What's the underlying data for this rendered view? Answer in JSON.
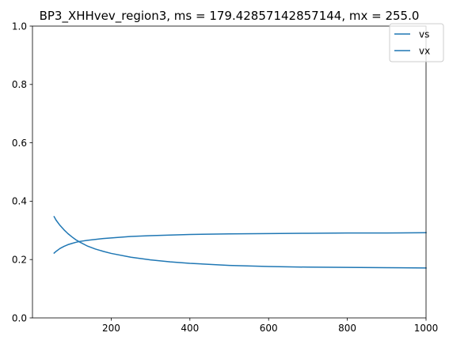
{
  "chart_data": {
    "type": "line",
    "title": "BP3_XHHvev_region3, ms = 179.42857142857144, mx = 255.0",
    "xlabel": "",
    "ylabel": "",
    "xlim": [
      0,
      1000
    ],
    "ylim": [
      0.0,
      1.0
    ],
    "x_ticks": [
      200,
      400,
      600,
      800,
      1000
    ],
    "x_tick_labels": [
      "200",
      "400",
      "600",
      "800",
      "1000"
    ],
    "y_ticks": [
      0.0,
      0.2,
      0.4,
      0.6,
      0.8,
      1.0
    ],
    "y_tick_labels": [
      "0.0",
      "0.2",
      "0.4",
      "0.6",
      "0.8",
      "1.0"
    ],
    "grid": false,
    "legend_position": "top-right",
    "series": [
      {
        "name": "vs",
        "color": "#1f77b4",
        "x": [
          55,
          60,
          70,
          80,
          90,
          100,
          110,
          120,
          140,
          160,
          180,
          200,
          250,
          300,
          350,
          400,
          500,
          600,
          700,
          800,
          900,
          1000
        ],
        "y": [
          0.222,
          0.228,
          0.238,
          0.245,
          0.251,
          0.255,
          0.259,
          0.262,
          0.266,
          0.269,
          0.272,
          0.274,
          0.279,
          0.282,
          0.284,
          0.286,
          0.288,
          0.289,
          0.29,
          0.291,
          0.291,
          0.292
        ]
      },
      {
        "name": "vx",
        "color": "#1f77b4",
        "x": [
          55,
          60,
          70,
          80,
          90,
          100,
          110,
          120,
          140,
          160,
          180,
          200,
          250,
          300,
          350,
          400,
          500,
          600,
          700,
          800,
          900,
          1000
        ],
        "y": [
          0.347,
          0.335,
          0.317,
          0.302,
          0.289,
          0.278,
          0.268,
          0.26,
          0.246,
          0.236,
          0.228,
          0.221,
          0.208,
          0.199,
          0.192,
          0.187,
          0.18,
          0.176,
          0.174,
          0.173,
          0.172,
          0.171
        ]
      }
    ]
  }
}
